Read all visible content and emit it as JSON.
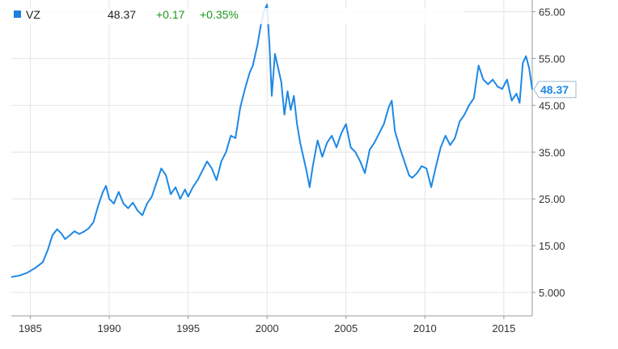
{
  "legend": {
    "symbol": "VZ",
    "price": "48.37",
    "change": "+0.17",
    "change_pct": "+0.35%",
    "marker_color": "#1b7fdc",
    "change_color": "#1a9a1a"
  },
  "colors": {
    "line": "#1e88e5",
    "grid": "#e4e4e4",
    "axis": "#999999",
    "badge_text": "#1e88e5"
  },
  "last_price_label": "48.37",
  "chart_data": {
    "type": "line",
    "title": "",
    "xlabel": "",
    "ylabel": "",
    "xlim": [
      1983.8,
      2016.8
    ],
    "ylim": [
      0,
      67.5
    ],
    "grid": true,
    "legend_position": "top-left",
    "x_ticks": [
      1985,
      1990,
      1995,
      2000,
      2005,
      2010,
      2015
    ],
    "x_tick_labels": [
      "1985",
      "1990",
      "1995",
      "2000",
      "2005",
      "2010",
      "2015"
    ],
    "y_ticks": [
      5,
      15,
      25,
      35,
      45,
      55,
      65
    ],
    "y_tick_labels": [
      "5.000",
      "15.00",
      "25.00",
      "35.00",
      "45.00",
      "55.00",
      "65.00"
    ],
    "series": [
      {
        "name": "VZ",
        "x": [
          1983.8,
          1984.3,
          1984.8,
          1985.3,
          1985.8,
          1986.1,
          1986.4,
          1986.7,
          1987.0,
          1987.2,
          1987.5,
          1987.8,
          1988.1,
          1988.4,
          1988.7,
          1989.0,
          1989.3,
          1989.6,
          1989.8,
          1990.0,
          1990.3,
          1990.6,
          1990.9,
          1991.2,
          1991.5,
          1991.8,
          1992.1,
          1992.4,
          1992.7,
          1993.0,
          1993.3,
          1993.6,
          1993.9,
          1994.2,
          1994.5,
          1994.8,
          1995.0,
          1995.3,
          1995.6,
          1995.9,
          1996.2,
          1996.5,
          1996.8,
          1997.1,
          1997.4,
          1997.7,
          1998.0,
          1998.3,
          1998.6,
          1998.9,
          1999.1,
          1999.4,
          1999.6,
          1999.8,
          2000.0,
          2000.15,
          2000.3,
          2000.5,
          2000.7,
          2000.9,
          2001.1,
          2001.3,
          2001.5,
          2001.7,
          2001.9,
          2002.1,
          2002.3,
          2002.5,
          2002.7,
          2002.9,
          2003.2,
          2003.5,
          2003.8,
          2004.1,
          2004.4,
          2004.7,
          2005.0,
          2005.3,
          2005.6,
          2005.9,
          2006.2,
          2006.5,
          2006.8,
          2007.1,
          2007.4,
          2007.7,
          2007.9,
          2008.1,
          2008.4,
          2008.7,
          2009.0,
          2009.2,
          2009.5,
          2009.8,
          2010.1,
          2010.4,
          2010.7,
          2011.0,
          2011.3,
          2011.6,
          2011.9,
          2012.2,
          2012.5,
          2012.8,
          2013.1,
          2013.4,
          2013.7,
          2014.0,
          2014.3,
          2014.6,
          2014.9,
          2015.2,
          2015.5,
          2015.8,
          2016.0,
          2016.2,
          2016.4,
          2016.6,
          2016.8
        ],
        "values": [
          8.3,
          8.6,
          9.2,
          10.2,
          11.5,
          14.0,
          17.2,
          18.5,
          17.5,
          16.4,
          17.2,
          18.1,
          17.5,
          18.0,
          18.7,
          20.0,
          23.5,
          26.5,
          27.8,
          25.0,
          24.0,
          26.5,
          24.0,
          23.0,
          24.2,
          22.5,
          21.5,
          24.0,
          25.5,
          28.5,
          31.5,
          30.0,
          26.0,
          27.5,
          25.0,
          27.0,
          25.5,
          27.5,
          29.0,
          31.0,
          33.0,
          31.5,
          29.0,
          33.0,
          35.0,
          38.5,
          38.0,
          44.5,
          48.5,
          52.0,
          53.5,
          58.0,
          62.0,
          65.0,
          66.5,
          58.0,
          47.0,
          56.0,
          53.0,
          50.0,
          43.0,
          48.0,
          44.0,
          47.0,
          41.0,
          37.0,
          34.0,
          31.0,
          27.5,
          32.0,
          37.5,
          34.0,
          37.0,
          38.5,
          36.0,
          39.0,
          41.0,
          36.0,
          35.0,
          33.0,
          30.5,
          35.5,
          37.0,
          39.0,
          41.0,
          44.5,
          46.0,
          39.5,
          36.0,
          33.0,
          30.0,
          29.5,
          30.5,
          32.0,
          31.5,
          27.5,
          32.0,
          36.0,
          38.5,
          36.5,
          38.0,
          41.5,
          43.0,
          45.0,
          46.5,
          53.5,
          50.5,
          49.5,
          50.5,
          49.0,
          48.5,
          50.5,
          46.0,
          47.5,
          45.5,
          54.0,
          55.5,
          53.0,
          48.37
        ]
      }
    ]
  }
}
